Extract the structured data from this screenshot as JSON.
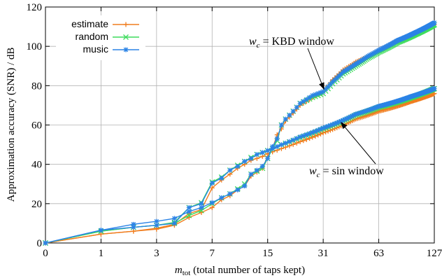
{
  "chart_data": {
    "type": "line",
    "xlabel_symbol": "m",
    "xlabel_subscript": "tot",
    "xlabel_rest": " (total number of taps kept)",
    "ylabel": "Approximation accuracy (SNR) / dB",
    "ylim": [
      0,
      120
    ],
    "y_ticks": [
      0,
      20,
      40,
      60,
      80,
      100,
      120
    ],
    "x_ticks": [
      0,
      1,
      3,
      7,
      15,
      31,
      63,
      127
    ],
    "x_scale": "log(1+x)",
    "grid": true,
    "legend_position": "top-left",
    "series": [
      {
        "name": "estimate",
        "color": "#f07d1e",
        "marker": "plus"
      },
      {
        "name": "random",
        "color": "#3ddc5c",
        "marker": "cross"
      },
      {
        "name": "music",
        "color": "#2b83e6",
        "marker": "star"
      }
    ],
    "curves": [
      {
        "series": "estimate",
        "window": "sin",
        "points": [
          [
            0,
            0
          ],
          [
            1,
            4.5
          ],
          [
            2,
            6
          ],
          [
            3,
            7.5
          ],
          [
            4,
            9.5
          ],
          [
            5,
            15
          ],
          [
            6,
            17
          ],
          [
            7,
            28
          ],
          [
            8,
            32
          ],
          [
            9,
            35
          ],
          [
            10,
            38
          ],
          [
            11,
            40
          ],
          [
            12,
            42
          ],
          [
            13,
            43
          ],
          [
            14,
            44
          ],
          [
            15,
            45.5
          ],
          [
            18,
            48
          ],
          [
            23,
            51.5
          ],
          [
            31,
            56
          ],
          [
            47,
            63
          ],
          [
            63,
            67
          ],
          [
            95,
            72
          ],
          [
            127,
            76
          ]
        ]
      },
      {
        "series": "estimate",
        "window": "KBD",
        "points": [
          [
            0,
            0
          ],
          [
            1,
            4.5
          ],
          [
            2,
            6
          ],
          [
            3,
            7
          ],
          [
            4,
            9
          ],
          [
            5,
            13
          ],
          [
            6,
            15.5
          ],
          [
            7,
            18
          ],
          [
            8,
            22
          ],
          [
            9,
            24
          ],
          [
            10,
            27
          ],
          [
            11,
            29
          ],
          [
            12,
            34
          ],
          [
            13,
            36
          ],
          [
            14,
            38
          ],
          [
            15,
            44
          ],
          [
            16,
            48
          ],
          [
            17,
            55
          ],
          [
            18,
            58
          ],
          [
            19,
            62
          ],
          [
            21,
            66
          ],
          [
            23,
            70
          ],
          [
            27,
            74
          ],
          [
            31,
            77
          ],
          [
            35,
            83
          ],
          [
            40,
            88
          ],
          [
            47,
            92
          ],
          [
            55,
            95
          ],
          [
            63,
            98
          ],
          [
            80,
            103
          ],
          [
            100,
            107
          ],
          [
            127,
            111
          ]
        ]
      },
      {
        "series": "random",
        "window": "sin",
        "points": [
          [
            0,
            0
          ],
          [
            1,
            6
          ],
          [
            2,
            8
          ],
          [
            3,
            9
          ],
          [
            4,
            10.5
          ],
          [
            5,
            18
          ],
          [
            6,
            20.5
          ],
          [
            7,
            31
          ],
          [
            8,
            33.5
          ],
          [
            9,
            37
          ],
          [
            10,
            39.5
          ],
          [
            11,
            41.5
          ],
          [
            12,
            43.5
          ],
          [
            13,
            45
          ],
          [
            14,
            46
          ],
          [
            15,
            47
          ],
          [
            18,
            50
          ],
          [
            23,
            53.5
          ],
          [
            31,
            58
          ],
          [
            47,
            65
          ],
          [
            63,
            69
          ],
          [
            95,
            74
          ],
          [
            127,
            78.5
          ]
        ]
      },
      {
        "series": "random",
        "window": "KBD",
        "points": [
          [
            0,
            0
          ],
          [
            1,
            6
          ],
          [
            2,
            8
          ],
          [
            3,
            9
          ],
          [
            4,
            10
          ],
          [
            5,
            14
          ],
          [
            6,
            16.5
          ],
          [
            7,
            20
          ],
          [
            8,
            23
          ],
          [
            9,
            25
          ],
          [
            10,
            27.5
          ],
          [
            11,
            30
          ],
          [
            12,
            35
          ],
          [
            13,
            36.5
          ],
          [
            14,
            38
          ],
          [
            15,
            43
          ],
          [
            16,
            48
          ],
          [
            17,
            52
          ],
          [
            18,
            60
          ],
          [
            19,
            63
          ],
          [
            21,
            67
          ],
          [
            23,
            71
          ],
          [
            27,
            74
          ],
          [
            31,
            76
          ],
          [
            35,
            81
          ],
          [
            40,
            86
          ],
          [
            47,
            90
          ],
          [
            55,
            94
          ],
          [
            63,
            97
          ],
          [
            80,
            102
          ],
          [
            100,
            106
          ],
          [
            127,
            111
          ]
        ]
      },
      {
        "series": "music",
        "window": "sin",
        "points": [
          [
            0,
            0
          ],
          [
            1,
            6.5
          ],
          [
            2,
            8
          ],
          [
            3,
            9
          ],
          [
            4,
            10
          ],
          [
            5,
            18
          ],
          [
            6,
            20
          ],
          [
            7,
            30.5
          ],
          [
            8,
            33
          ],
          [
            9,
            37
          ],
          [
            10,
            39
          ],
          [
            11,
            41.5
          ],
          [
            12,
            43
          ],
          [
            13,
            45
          ],
          [
            14,
            46
          ],
          [
            15,
            47
          ],
          [
            18,
            50
          ],
          [
            23,
            54
          ],
          [
            31,
            58.5
          ],
          [
            47,
            65.5
          ],
          [
            63,
            69.5
          ],
          [
            95,
            74.5
          ],
          [
            127,
            78.5
          ]
        ]
      },
      {
        "series": "music",
        "window": "KBD",
        "points": [
          [
            0,
            0
          ],
          [
            1,
            6.5
          ],
          [
            2,
            9.5
          ],
          [
            3,
            11
          ],
          [
            4,
            12.5
          ],
          [
            5,
            16
          ],
          [
            6,
            18
          ],
          [
            7,
            20.5
          ],
          [
            8,
            23
          ],
          [
            9,
            25
          ],
          [
            10,
            27
          ],
          [
            11,
            29
          ],
          [
            12,
            35
          ],
          [
            13,
            37
          ],
          [
            14,
            39
          ],
          [
            15,
            43
          ],
          [
            16,
            49
          ],
          [
            17,
            53
          ],
          [
            18,
            60
          ],
          [
            19,
            63
          ],
          [
            21,
            67
          ],
          [
            23,
            71
          ],
          [
            27,
            75
          ],
          [
            31,
            77
          ],
          [
            35,
            82
          ],
          [
            40,
            87
          ],
          [
            47,
            91
          ],
          [
            55,
            95
          ],
          [
            63,
            98
          ],
          [
            80,
            103
          ],
          [
            100,
            107
          ],
          [
            127,
            112
          ]
        ]
      }
    ],
    "annotations": [
      {
        "math": "w",
        "sub": "c",
        "text": " = KBD window",
        "x": 31,
        "y": 79
      },
      {
        "math": "w",
        "sub": "c",
        "text": " = sin window",
        "x": 39,
        "y": 62
      }
    ]
  }
}
